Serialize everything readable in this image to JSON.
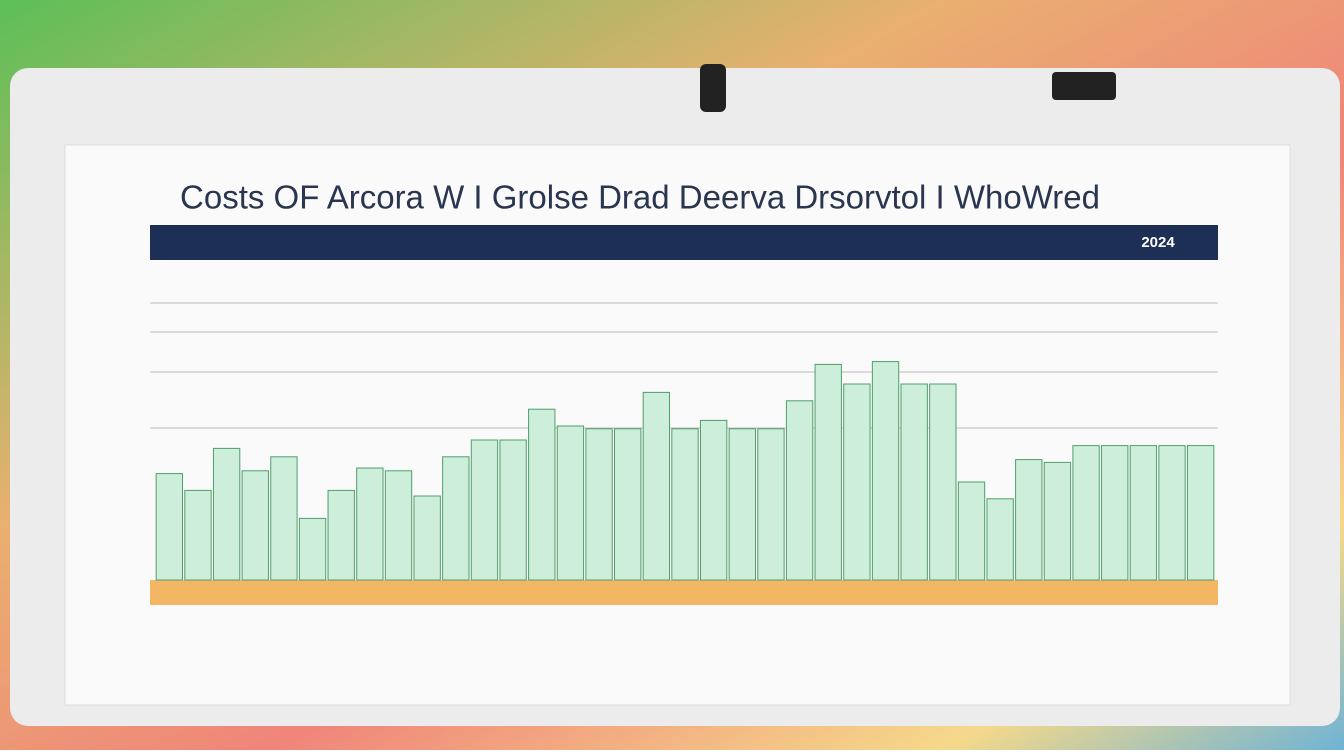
{
  "chart_data": {
    "type": "bar",
    "title": "Costs OF Arcora W I Grolse Drad Deerva Drsorvtol I WhoWred",
    "header_year": "2024",
    "categories": [
      null,
      null,
      null,
      null,
      null,
      null,
      null,
      null,
      null,
      null,
      null,
      null,
      null,
      null,
      null,
      null,
      null,
      null,
      null,
      null,
      null,
      null,
      null,
      null,
      null,
      null,
      null,
      null,
      null,
      null,
      null,
      null,
      null,
      null,
      null,
      null,
      null
    ],
    "values": [
      38,
      32,
      47,
      39,
      44,
      22,
      32,
      40,
      39,
      30,
      44,
      50,
      50,
      61,
      55,
      54,
      54,
      67,
      54,
      57,
      54,
      54,
      64,
      77,
      70,
      78,
      70,
      70,
      35,
      29,
      43,
      42,
      48,
      48,
      48,
      48,
      48
    ],
    "color": "#cdeedb",
    "ylim": [
      0,
      100
    ]
  }
}
